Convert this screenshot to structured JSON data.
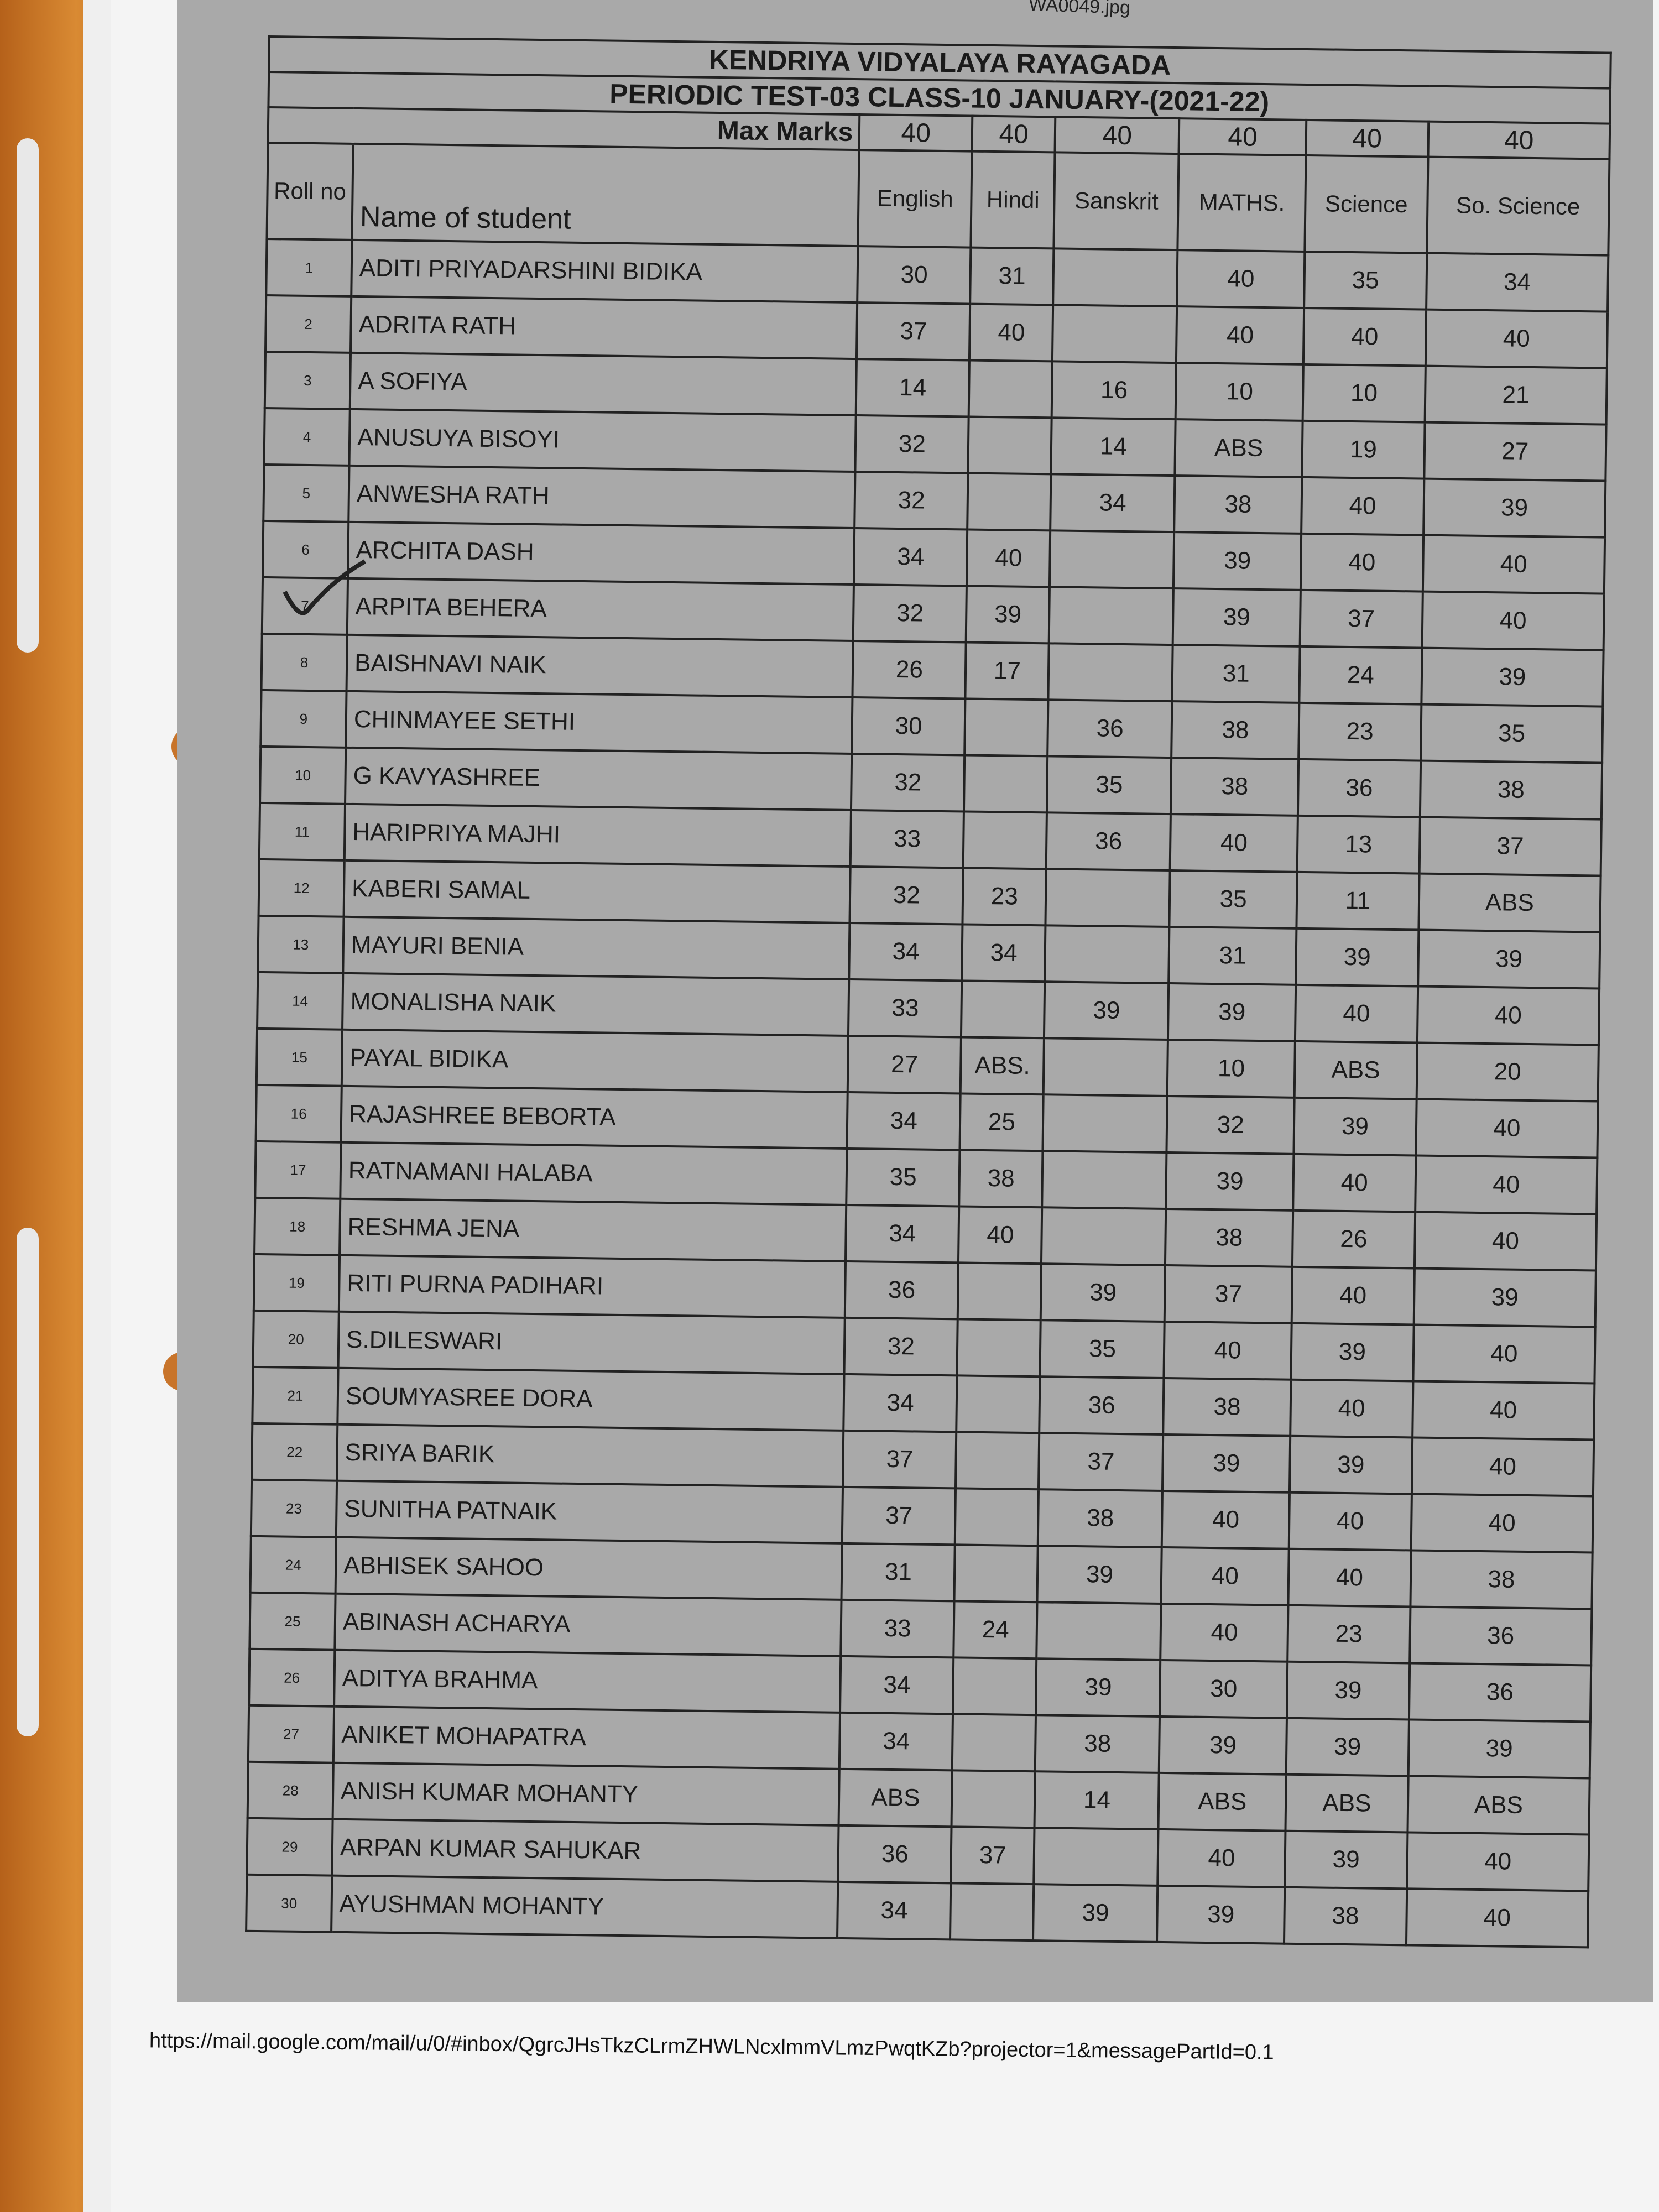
{
  "file_name": "WA0049.jpg",
  "school": "KENDRIYA VIDYALAYA RAYAGADA",
  "test": "PERIODIC TEST-03  CLASS-10 JANUARY-(2021-22)",
  "max_marks_label": "Max Marks",
  "headers": {
    "roll": "Roll no",
    "name": "Name of student"
  },
  "subjects": [
    "English",
    "Hindi",
    "Sanskrit",
    "MATHS.",
    "Science",
    "So. Science"
  ],
  "max_marks": [
    "40",
    "40",
    "40",
    "40",
    "40",
    "40"
  ],
  "rows": [
    {
      "roll": "1",
      "name": "ADITI PRIYADARSHINI BIDIKA",
      "marks": [
        "30",
        "31",
        "",
        "40",
        "35",
        "34"
      ]
    },
    {
      "roll": "2",
      "name": "ADRITA RATH",
      "marks": [
        "37",
        "40",
        "",
        "40",
        "40",
        "40"
      ]
    },
    {
      "roll": "3",
      "name": "A SOFIYA",
      "marks": [
        "14",
        "",
        "16",
        "10",
        "10",
        "21"
      ]
    },
    {
      "roll": "4",
      "name": "ANUSUYA BISOYI",
      "marks": [
        "32",
        "",
        "14",
        "ABS",
        "19",
        "27"
      ]
    },
    {
      "roll": "5",
      "name": "ANWESHA RATH",
      "marks": [
        "32",
        "",
        "34",
        "38",
        "40",
        "39"
      ]
    },
    {
      "roll": "6",
      "name": "ARCHITA DASH",
      "marks": [
        "34",
        "40",
        "",
        "39",
        "40",
        "40"
      ]
    },
    {
      "roll": "7",
      "name": "ARPITA BEHERA",
      "marks": [
        "32",
        "39",
        "",
        "39",
        "37",
        "40"
      ]
    },
    {
      "roll": "8",
      "name": "BAISHNAVI NAIK",
      "marks": [
        "26",
        "17",
        "",
        "31",
        "24",
        "39"
      ]
    },
    {
      "roll": "9",
      "name": "CHINMAYEE SETHI",
      "marks": [
        "30",
        "",
        "36",
        "38",
        "23",
        "35"
      ]
    },
    {
      "roll": "10",
      "name": "G KAVYASHREE",
      "marks": [
        "32",
        "",
        "35",
        "38",
        "36",
        "38"
      ]
    },
    {
      "roll": "11",
      "name": "HARIPRIYA MAJHI",
      "marks": [
        "33",
        "",
        "36",
        "40",
        "13",
        "37"
      ]
    },
    {
      "roll": "12",
      "name": "KABERI SAMAL",
      "marks": [
        "32",
        "23",
        "",
        "35",
        "11",
        "ABS"
      ]
    },
    {
      "roll": "13",
      "name": "MAYURI BENIA",
      "marks": [
        "34",
        "34",
        "",
        "31",
        "39",
        "39"
      ]
    },
    {
      "roll": "14",
      "name": "MONALISHA NAIK",
      "marks": [
        "33",
        "",
        "39",
        "39",
        "40",
        "40"
      ]
    },
    {
      "roll": "15",
      "name": "PAYAL BIDIKA",
      "marks": [
        "27",
        "ABS.",
        "",
        "10",
        "ABS",
        "20"
      ]
    },
    {
      "roll": "16",
      "name": "RAJASHREE BEBORTA",
      "marks": [
        "34",
        "25",
        "",
        "32",
        "39",
        "40"
      ]
    },
    {
      "roll": "17",
      "name": "RATNAMANI HALABA",
      "marks": [
        "35",
        "38",
        "",
        "39",
        "40",
        "40"
      ]
    },
    {
      "roll": "18",
      "name": "RESHMA JENA",
      "marks": [
        "34",
        "40",
        "",
        "38",
        "26",
        "40"
      ]
    },
    {
      "roll": "19",
      "name": "RITI PURNA PADIHARI",
      "marks": [
        "36",
        "",
        "39",
        "37",
        "40",
        "39"
      ]
    },
    {
      "roll": "20",
      "name": "S.DILESWARI",
      "marks": [
        "32",
        "",
        "35",
        "40",
        "39",
        "40"
      ]
    },
    {
      "roll": "21",
      "name": "SOUMYASREE DORA",
      "marks": [
        "34",
        "",
        "36",
        "38",
        "40",
        "40"
      ]
    },
    {
      "roll": "22",
      "name": "SRIYA BARIK",
      "marks": [
        "37",
        "",
        "37",
        "39",
        "39",
        "40"
      ]
    },
    {
      "roll": "23",
      "name": "SUNITHA PATNAIK",
      "marks": [
        "37",
        "",
        "38",
        "40",
        "40",
        "40"
      ]
    },
    {
      "roll": "24",
      "name": "ABHISEK SAHOO",
      "marks": [
        "31",
        "",
        "39",
        "40",
        "40",
        "38"
      ]
    },
    {
      "roll": "25",
      "name": "ABINASH ACHARYA",
      "marks": [
        "33",
        "24",
        "",
        "40",
        "23",
        "36"
      ]
    },
    {
      "roll": "26",
      "name": "ADITYA BRAHMA",
      "marks": [
        "34",
        "",
        "39",
        "30",
        "39",
        "36"
      ]
    },
    {
      "roll": "27",
      "name": "ANIKET MOHAPATRA",
      "marks": [
        "34",
        "",
        "38",
        "39",
        "39",
        "39"
      ]
    },
    {
      "roll": "28",
      "name": "ANISH KUMAR MOHANTY",
      "marks": [
        "ABS",
        "",
        "14",
        "ABS",
        "ABS",
        "ABS"
      ]
    },
    {
      "roll": "29",
      "name": "ARPAN KUMAR SAHUKAR",
      "marks": [
        "36",
        "37",
        "",
        "40",
        "39",
        "40"
      ]
    },
    {
      "roll": "30",
      "name": "AYUSHMAN MOHANTY",
      "marks": [
        "34",
        "",
        "39",
        "39",
        "38",
        "40"
      ]
    }
  ],
  "footer_url": "https://mail.google.com/mail/u/0/#inbox/QgrcJHsTkzCLrmZHWLNcxlmmVLmzPwqtKZb?projector=1&messagePartId=0.1"
}
